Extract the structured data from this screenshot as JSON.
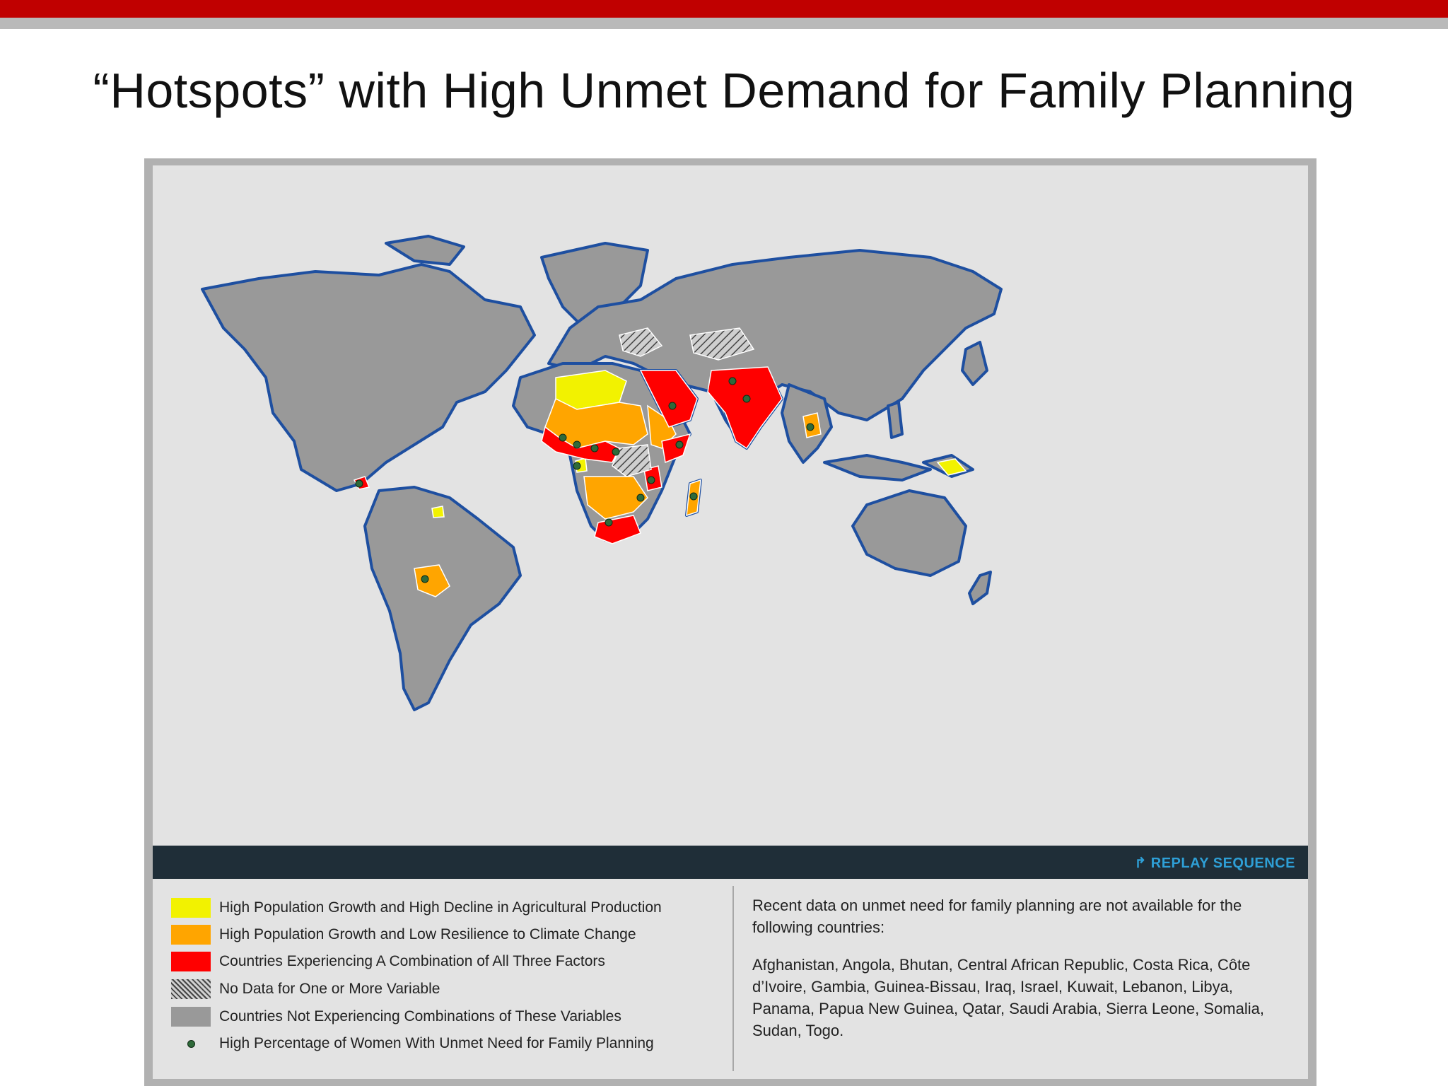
{
  "slide": {
    "title": "“Hotspots” with High Unmet Demand for Family Planning"
  },
  "colors": {
    "accent_bar": "#c00000",
    "yellow": "#f2f200",
    "orange": "#ffa500",
    "red": "#ff0000",
    "grey": "#999999",
    "ocean": "#e3e3e3",
    "coast": "#1e4fa0",
    "dot": "#2f6a3a"
  },
  "map": {
    "replay_label": "REPLAY SEQUENCE",
    "replay_icon": "replay-arrow-icon"
  },
  "legend": {
    "items": [
      {
        "label": "High Population Growth and High Decline in Agricultural Production",
        "swatch": "yellow"
      },
      {
        "label": "High Population Growth and Low Resilience to Climate Change",
        "swatch": "orange"
      },
      {
        "label": "Countries Experiencing A Combination of All Three Factors",
        "swatch": "red"
      },
      {
        "label": "No Data for One or More Variable",
        "swatch": "hatched"
      },
      {
        "label": "Countries Not Experiencing Combinations of These Variables",
        "swatch": "grey"
      },
      {
        "label": "High Percentage of Women With Unmet Need for Family Planning",
        "swatch": "dot"
      }
    ]
  },
  "note": {
    "intro": "Recent data on unmet need for family planning are not available for the following countries:",
    "countries": "Afghanistan, Angola, Bhutan, Central African Republic, Costa Rica, Côte d’Ivoire, Gambia, Guinea-Bissau, Iraq, Israel, Kuwait, Lebanon, Libya, Panama, Papua New Guinea, Qatar, Saudi Arabia, Sierra Leone, Somalia, Sudan, Togo."
  }
}
